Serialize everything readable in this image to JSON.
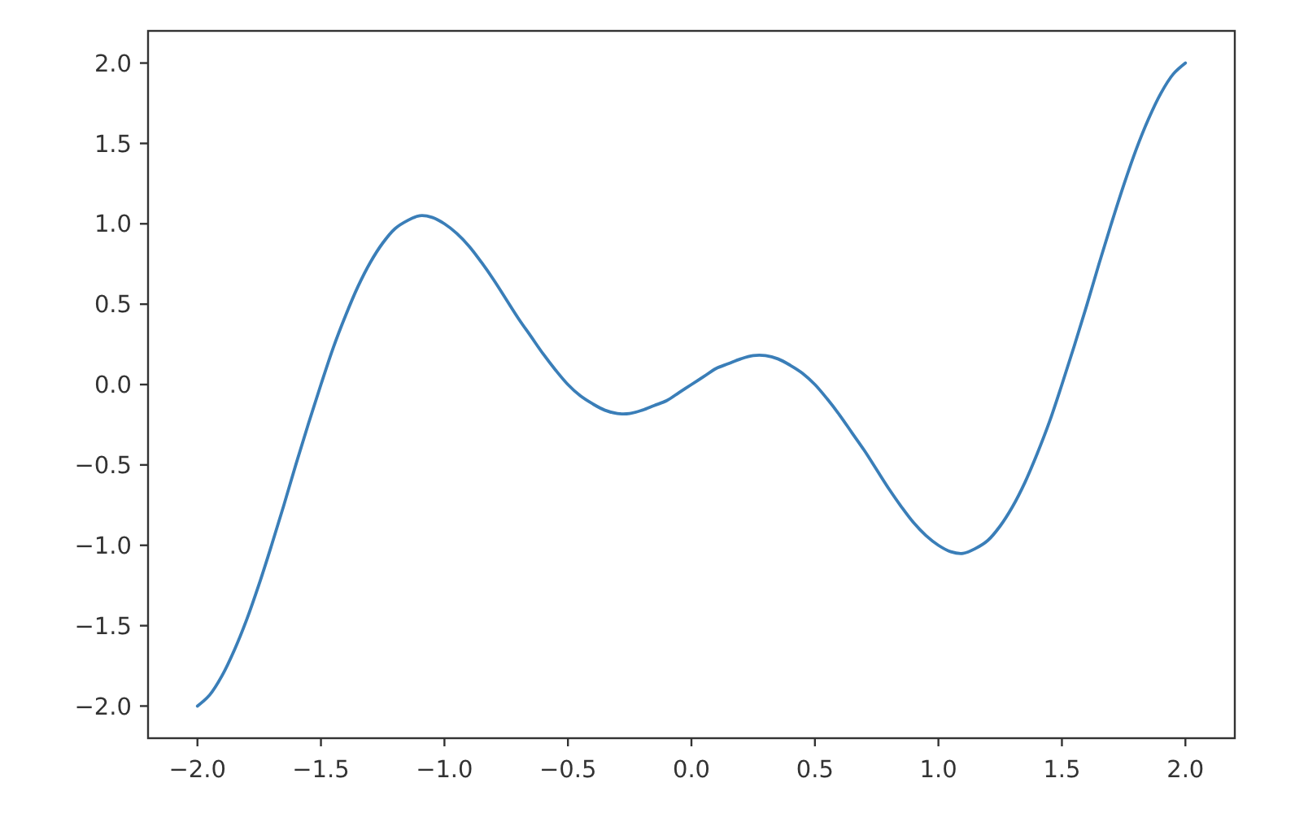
{
  "chart_data": {
    "type": "line",
    "color": "#3a7eb8",
    "x": [
      -2.0,
      -1.95,
      -1.9,
      -1.85,
      -1.8,
      -1.75,
      -1.7,
      -1.65,
      -1.6,
      -1.55,
      -1.5,
      -1.45,
      -1.4,
      -1.35,
      -1.3,
      -1.25,
      -1.2,
      -1.15,
      -1.1,
      -1.05,
      -1.0,
      -0.95,
      -0.9,
      -0.85,
      -0.8,
      -0.75,
      -0.7,
      -0.65,
      -0.6,
      -0.55,
      -0.5,
      -0.45,
      -0.4,
      -0.35,
      -0.3,
      -0.25,
      -0.2,
      -0.15,
      -0.1,
      -0.05,
      0.0,
      0.05,
      0.1,
      0.15,
      0.2,
      0.25,
      0.3,
      0.35,
      0.4,
      0.45,
      0.5,
      0.55,
      0.6,
      0.65,
      0.7,
      0.75,
      0.8,
      0.85,
      0.9,
      0.95,
      1.0,
      1.05,
      1.1,
      1.15,
      1.2,
      1.25,
      1.3,
      1.35,
      1.4,
      1.45,
      1.5,
      1.55,
      1.6,
      1.65,
      1.7,
      1.75,
      1.8,
      1.85,
      1.9,
      1.95,
      2.0
    ],
    "values": [
      -2.0,
      -1.93,
      -1.81,
      -1.65,
      -1.46,
      -1.24,
      -1.0,
      -0.75,
      -0.49,
      -0.24,
      0.0,
      0.23,
      0.43,
      0.61,
      0.76,
      0.88,
      0.97,
      1.02,
      1.05,
      1.04,
      1.0,
      0.94,
      0.86,
      0.76,
      0.65,
      0.53,
      0.41,
      0.3,
      0.19,
      0.09,
      0.0,
      -0.07,
      -0.12,
      -0.16,
      -0.18,
      -0.18,
      -0.16,
      -0.13,
      -0.1,
      -0.05,
      0.0,
      0.05,
      0.1,
      0.13,
      0.16,
      0.18,
      0.18,
      0.16,
      0.12,
      0.07,
      0.0,
      -0.09,
      -0.19,
      -0.3,
      -0.41,
      -0.53,
      -0.65,
      -0.76,
      -0.86,
      -0.94,
      -1.0,
      -1.04,
      -1.05,
      -1.02,
      -0.97,
      -0.88,
      -0.76,
      -0.61,
      -0.43,
      -0.23,
      0.0,
      0.24,
      0.49,
      0.75,
      1.0,
      1.24,
      1.46,
      1.65,
      1.81,
      1.93,
      2.0
    ],
    "xlim": [
      -2.2,
      2.2
    ],
    "ylim": [
      -2.2,
      2.2
    ],
    "xticks": [
      {
        "value": -2,
        "label": "−2.0"
      },
      {
        "value": -1.5,
        "label": "−1.5"
      },
      {
        "value": -1,
        "label": "−1.0"
      },
      {
        "value": -0.5,
        "label": "−0.5"
      },
      {
        "value": 0,
        "label": "0.0"
      },
      {
        "value": 0.5,
        "label": "0.5"
      },
      {
        "value": 1,
        "label": "1.0"
      },
      {
        "value": 1.5,
        "label": "1.5"
      },
      {
        "value": 2,
        "label": "2.0"
      }
    ],
    "yticks": [
      {
        "value": -2,
        "label": "−2.0"
      },
      {
        "value": -1.5,
        "label": "−1.5"
      },
      {
        "value": -1,
        "label": "−1.0"
      },
      {
        "value": -0.5,
        "label": "−0.5"
      },
      {
        "value": 0,
        "label": "0.0"
      },
      {
        "value": 0.5,
        "label": "0.5"
      },
      {
        "value": 1,
        "label": "1.0"
      },
      {
        "value": 1.5,
        "label": "1.5"
      },
      {
        "value": 2,
        "label": "2.0"
      }
    ]
  }
}
